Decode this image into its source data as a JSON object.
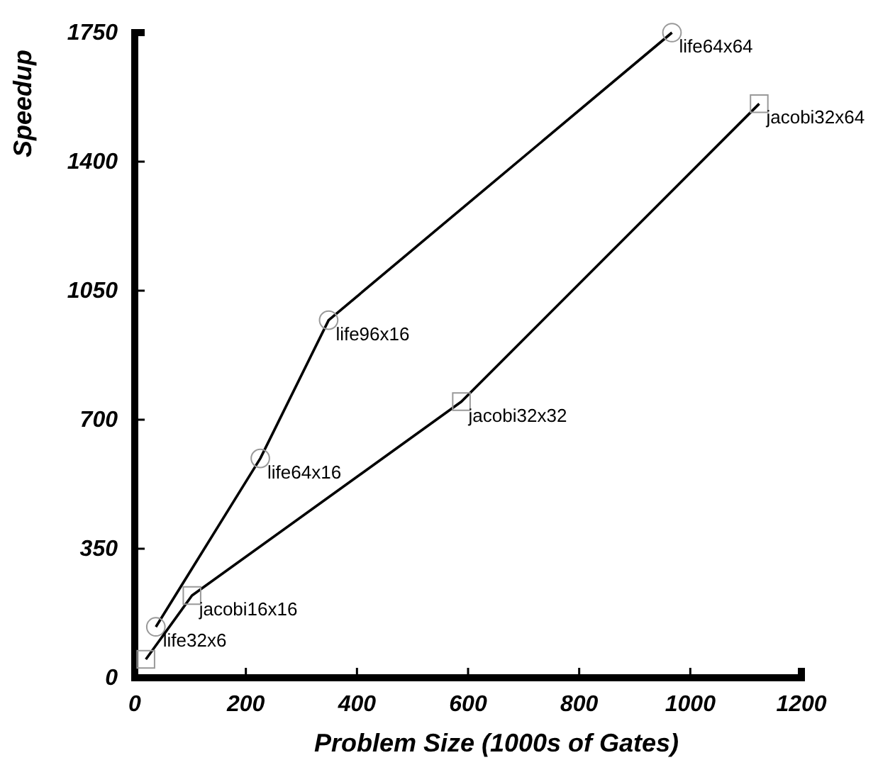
{
  "chart_data": {
    "type": "line",
    "xlabel": "Problem Size (1000s of Gates)",
    "ylabel": "Speedup",
    "xlim": [
      0,
      1200
    ],
    "xticks": [
      0,
      200,
      400,
      600,
      800,
      1000,
      1200
    ],
    "ylim": [
      0,
      1750
    ],
    "yticks": [
      0,
      350,
      700,
      1050,
      1400,
      1750
    ],
    "grid": false,
    "line_style": "solid",
    "series": [
      {
        "color": "#000000",
        "marker": "circle",
        "x": [
          38,
          226,
          349,
          967
        ],
        "values": [
          138,
          595,
          970,
          1750
        ]
      },
      {
        "color": "#000000",
        "marker": "square",
        "x": [
          20,
          103,
          588,
          1124
        ],
        "values": [
          50,
          223,
          749,
          1557
        ]
      }
    ],
    "annotations": [
      {
        "text": "life32x6",
        "x": 38,
        "y": 138
      },
      {
        "text": "life64x16",
        "x": 226,
        "y": 595
      },
      {
        "text": "life96x16",
        "x": 349,
        "y": 970
      },
      {
        "text": "life64x64",
        "x": 967,
        "y": 1750
      },
      {
        "text": "jacobi16x16",
        "x": 103,
        "y": 223
      },
      {
        "text": "jacobi32x32",
        "x": 588,
        "y": 749
      },
      {
        "text": "jacobi32x64",
        "x": 1124,
        "y": 1557
      }
    ]
  }
}
